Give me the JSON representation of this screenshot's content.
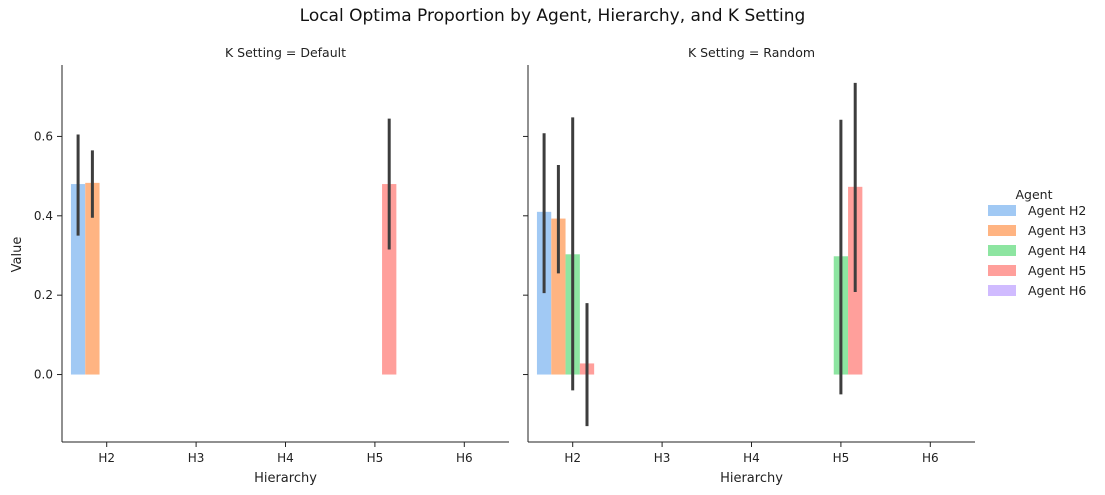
{
  "figure": {
    "title": "Local Optima Proportion by Agent, Hierarchy, and K Setting"
  },
  "legend": {
    "title": "Agent",
    "placement": "right",
    "entries": [
      {
        "name": "Agent H2",
        "color": "#a1c9f4"
      },
      {
        "name": "Agent H3",
        "color": "#ffb482"
      },
      {
        "name": "Agent H4",
        "color": "#8de5a1"
      },
      {
        "name": "Agent H5",
        "color": "#ff9f9b"
      },
      {
        "name": "Agent H6",
        "color": "#d0bbff"
      }
    ]
  },
  "chart_data": [
    {
      "type": "bar",
      "title": "K Setting = Default",
      "xlabel": "Hierarchy",
      "ylabel": "Value",
      "categories": [
        "H2",
        "H3",
        "H4",
        "H5",
        "H6"
      ],
      "ylim": [
        -0.17,
        0.78
      ],
      "yticks": [
        0.0,
        0.2,
        0.4,
        0.6
      ],
      "ytick_labels": [
        "0.0",
        "0.2",
        "0.4",
        "0.6"
      ],
      "grid": false,
      "series": [
        {
          "name": "Agent H2",
          "values": [
            0.48,
            null,
            null,
            null,
            null
          ],
          "ci_low": [
            0.35,
            null,
            null,
            null,
            null
          ],
          "ci_high": [
            0.605,
            null,
            null,
            null,
            null
          ]
        },
        {
          "name": "Agent H3",
          "values": [
            0.483,
            null,
            null,
            null,
            null
          ],
          "ci_low": [
            0.395,
            null,
            null,
            null,
            null
          ],
          "ci_high": [
            0.565,
            null,
            null,
            null,
            null
          ]
        },
        {
          "name": "Agent H4",
          "values": [
            null,
            null,
            null,
            null,
            null
          ],
          "ci_low": [
            null,
            null,
            null,
            null,
            null
          ],
          "ci_high": [
            null,
            null,
            null,
            null,
            null
          ]
        },
        {
          "name": "Agent H5",
          "values": [
            null,
            null,
            null,
            0.48,
            null
          ],
          "ci_low": [
            null,
            null,
            null,
            0.315,
            null
          ],
          "ci_high": [
            null,
            null,
            null,
            0.645,
            null
          ]
        },
        {
          "name": "Agent H6",
          "values": [
            null,
            null,
            null,
            null,
            null
          ],
          "ci_low": [
            null,
            null,
            null,
            null,
            null
          ],
          "ci_high": [
            null,
            null,
            null,
            null,
            null
          ]
        }
      ]
    },
    {
      "type": "bar",
      "title": "K Setting = Random",
      "xlabel": "Hierarchy",
      "ylabel": "",
      "categories": [
        "H2",
        "H3",
        "H4",
        "H5",
        "H6"
      ],
      "ylim": [
        -0.17,
        0.78
      ],
      "yticks": [
        0.0,
        0.2,
        0.4,
        0.6
      ],
      "ytick_labels": [
        "",
        "",
        "",
        ""
      ],
      "grid": false,
      "series": [
        {
          "name": "Agent H2",
          "values": [
            0.41,
            null,
            null,
            null,
            null
          ],
          "ci_low": [
            0.205,
            null,
            null,
            null,
            null
          ],
          "ci_high": [
            0.608,
            null,
            null,
            null,
            null
          ]
        },
        {
          "name": "Agent H3",
          "values": [
            0.393,
            null,
            null,
            null,
            null
          ],
          "ci_low": [
            0.255,
            null,
            null,
            null,
            null
          ],
          "ci_high": [
            0.528,
            null,
            null,
            null,
            null
          ]
        },
        {
          "name": "Agent H4",
          "values": [
            0.303,
            null,
            null,
            0.298,
            null
          ],
          "ci_low": [
            -0.04,
            null,
            null,
            -0.05,
            null
          ],
          "ci_high": [
            0.648,
            null,
            null,
            0.642,
            null
          ]
        },
        {
          "name": "Agent H5",
          "values": [
            0.028,
            null,
            null,
            0.473,
            null
          ],
          "ci_low": [
            -0.13,
            null,
            null,
            0.208,
            null
          ],
          "ci_high": [
            0.18,
            null,
            null,
            0.735,
            null
          ]
        },
        {
          "name": "Agent H6",
          "values": [
            null,
            null,
            null,
            null,
            null
          ],
          "ci_low": [
            null,
            null,
            null,
            null,
            null
          ],
          "ci_high": [
            null,
            null,
            null,
            null,
            null
          ]
        }
      ]
    }
  ]
}
